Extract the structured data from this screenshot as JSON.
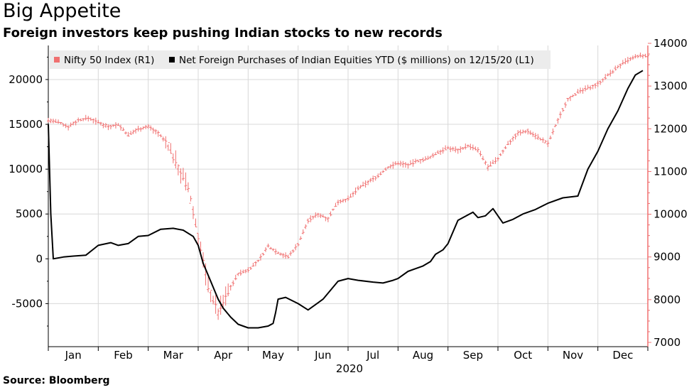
{
  "title": "Big Appetite",
  "subtitle": "Foreign investors keep pushing Indian stocks to new records",
  "source": "Source:  Bloomberg",
  "colors": {
    "nifty": "#f07070",
    "fpi": "#000000",
    "grid": "#d8d8d8",
    "right_axis": "#f07070"
  },
  "chart_data": {
    "type": "line",
    "xlabel": "2020",
    "x_ticks": [
      "Jan",
      "Feb",
      "Mar",
      "Apr",
      "May",
      "Jun",
      "Jul",
      "Aug",
      "Sep",
      "Oct",
      "Nov",
      "Dec"
    ],
    "y_left": {
      "ylim": [
        -9800,
        23800
      ],
      "ticks": [
        -5000,
        0,
        5000,
        10000,
        15000,
        20000
      ]
    },
    "y_right": {
      "ylim": [
        6900,
        13950
      ],
      "ticks": [
        7000,
        8000,
        9000,
        10000,
        11000,
        12000,
        13000,
        14000
      ]
    },
    "series": [
      {
        "name": "Nifty 50 Index (R1)",
        "axis": "right",
        "style": "ohlc",
        "x": [
          0.0,
          0.2,
          0.4,
          0.6,
          0.8,
          1.0,
          1.2,
          1.4,
          1.6,
          1.8,
          2.0,
          2.2,
          2.4,
          2.6,
          2.8,
          3.0,
          3.2,
          3.4,
          3.6,
          3.8,
          4.0,
          4.2,
          4.4,
          4.6,
          4.8,
          5.0,
          5.2,
          5.4,
          5.6,
          5.8,
          6.0,
          6.2,
          6.4,
          6.6,
          6.8,
          7.0,
          7.2,
          7.4,
          7.6,
          7.8,
          8.0,
          8.2,
          8.4,
          8.6,
          8.8,
          9.0,
          9.2,
          9.4,
          9.6,
          9.8,
          10.0,
          10.2,
          10.4,
          10.6,
          10.8,
          11.0,
          11.2,
          11.4,
          11.6,
          11.8,
          12.0
        ],
        "values": [
          12200,
          12150,
          12050,
          12200,
          12250,
          12150,
          12050,
          12100,
          11850,
          12000,
          12050,
          11900,
          11600,
          11100,
          10600,
          9500,
          8300,
          7700,
          8200,
          8600,
          8700,
          8900,
          9250,
          9100,
          9000,
          9300,
          9850,
          10000,
          9900,
          10300,
          10350,
          10600,
          10750,
          10900,
          11100,
          11200,
          11150,
          11250,
          11300,
          11450,
          11550,
          11500,
          11600,
          11500,
          11100,
          11300,
          11650,
          11900,
          11950,
          11800,
          11650,
          12200,
          12700,
          12850,
          12950,
          13050,
          13250,
          13450,
          13600,
          13700,
          13700
        ]
      },
      {
        "name": "Net Foreign Purchases of Indian Equities YTD ($ millions) on 12/15/20 (L1)",
        "axis": "left",
        "style": "line",
        "x": [
          0.0,
          0.05,
          0.1,
          0.3,
          0.5,
          0.75,
          1.0,
          1.25,
          1.4,
          1.6,
          1.8,
          2.0,
          2.25,
          2.5,
          2.7,
          2.9,
          3.0,
          3.1,
          3.25,
          3.4,
          3.5,
          3.65,
          3.8,
          4.0,
          4.2,
          4.4,
          4.5,
          4.55,
          4.6,
          4.75,
          5.0,
          5.2,
          5.4,
          5.5,
          5.8,
          6.0,
          6.2,
          6.5,
          6.7,
          6.9,
          7.0,
          7.2,
          7.5,
          7.65,
          7.75,
          7.9,
          8.0,
          8.2,
          8.4,
          8.5,
          8.6,
          8.75,
          8.9,
          9.1,
          9.3,
          9.5,
          9.75,
          10.0,
          10.3,
          10.6,
          10.8,
          11.0,
          11.2,
          11.4,
          11.6,
          11.75,
          11.9
        ],
        "values": [
          15000,
          5000,
          0,
          200,
          300,
          400,
          1500,
          1800,
          1500,
          1700,
          2500,
          2600,
          3300,
          3400,
          3200,
          2500,
          1500,
          -500,
          -2500,
          -4500,
          -5500,
          -6500,
          -7300,
          -7700,
          -7700,
          -7500,
          -7200,
          -6000,
          -4500,
          -4300,
          -5000,
          -5700,
          -4900,
          -4500,
          -2500,
          -2200,
          -2400,
          -2600,
          -2700,
          -2400,
          -2200,
          -1400,
          -800,
          -300,
          500,
          1000,
          1700,
          4300,
          4900,
          5200,
          4600,
          4800,
          5600,
          4000,
          4400,
          5000,
          5500,
          6200,
          6800,
          7000,
          10000,
          12000,
          14500,
          16500,
          19000,
          20500,
          21000
        ]
      }
    ],
    "legend_position": "top-left"
  }
}
